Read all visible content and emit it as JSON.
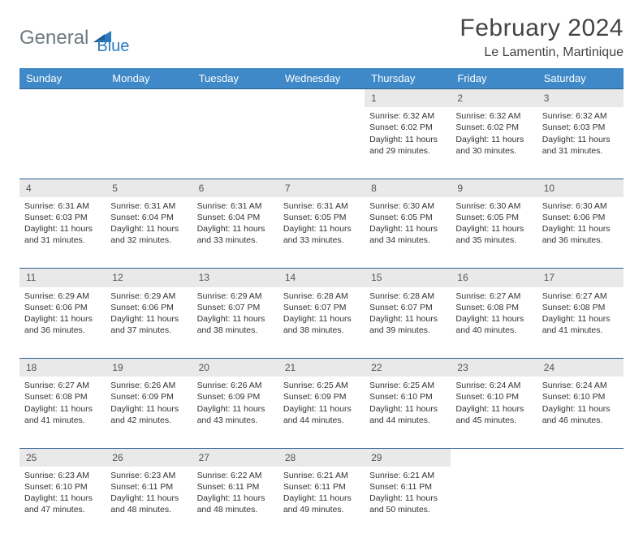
{
  "logo": {
    "text1": "General",
    "text2": "Blue"
  },
  "header": {
    "month_title": "February 2024",
    "location": "Le Lamentin, Martinique"
  },
  "colors": {
    "header_bg": "#3f89c8",
    "header_text": "#ffffff",
    "daynum_bg": "#e9e9e9",
    "border_top": "#2a5f8f",
    "body_text": "#333333",
    "logo_gray": "#6f7a80",
    "logo_blue": "#2a7bbf",
    "page_bg": "#ffffff"
  },
  "weekdays": [
    "Sunday",
    "Monday",
    "Tuesday",
    "Wednesday",
    "Thursday",
    "Friday",
    "Saturday"
  ],
  "weeks": [
    {
      "nums": [
        "",
        "",
        "",
        "",
        "1",
        "2",
        "3"
      ],
      "cells": [
        null,
        null,
        null,
        null,
        {
          "sunrise": "Sunrise: 6:32 AM",
          "sunset": "Sunset: 6:02 PM",
          "day1": "Daylight: 11 hours",
          "day2": "and 29 minutes."
        },
        {
          "sunrise": "Sunrise: 6:32 AM",
          "sunset": "Sunset: 6:02 PM",
          "day1": "Daylight: 11 hours",
          "day2": "and 30 minutes."
        },
        {
          "sunrise": "Sunrise: 6:32 AM",
          "sunset": "Sunset: 6:03 PM",
          "day1": "Daylight: 11 hours",
          "day2": "and 31 minutes."
        }
      ]
    },
    {
      "nums": [
        "4",
        "5",
        "6",
        "7",
        "8",
        "9",
        "10"
      ],
      "cells": [
        {
          "sunrise": "Sunrise: 6:31 AM",
          "sunset": "Sunset: 6:03 PM",
          "day1": "Daylight: 11 hours",
          "day2": "and 31 minutes."
        },
        {
          "sunrise": "Sunrise: 6:31 AM",
          "sunset": "Sunset: 6:04 PM",
          "day1": "Daylight: 11 hours",
          "day2": "and 32 minutes."
        },
        {
          "sunrise": "Sunrise: 6:31 AM",
          "sunset": "Sunset: 6:04 PM",
          "day1": "Daylight: 11 hours",
          "day2": "and 33 minutes."
        },
        {
          "sunrise": "Sunrise: 6:31 AM",
          "sunset": "Sunset: 6:05 PM",
          "day1": "Daylight: 11 hours",
          "day2": "and 33 minutes."
        },
        {
          "sunrise": "Sunrise: 6:30 AM",
          "sunset": "Sunset: 6:05 PM",
          "day1": "Daylight: 11 hours",
          "day2": "and 34 minutes."
        },
        {
          "sunrise": "Sunrise: 6:30 AM",
          "sunset": "Sunset: 6:05 PM",
          "day1": "Daylight: 11 hours",
          "day2": "and 35 minutes."
        },
        {
          "sunrise": "Sunrise: 6:30 AM",
          "sunset": "Sunset: 6:06 PM",
          "day1": "Daylight: 11 hours",
          "day2": "and 36 minutes."
        }
      ]
    },
    {
      "nums": [
        "11",
        "12",
        "13",
        "14",
        "15",
        "16",
        "17"
      ],
      "cells": [
        {
          "sunrise": "Sunrise: 6:29 AM",
          "sunset": "Sunset: 6:06 PM",
          "day1": "Daylight: 11 hours",
          "day2": "and 36 minutes."
        },
        {
          "sunrise": "Sunrise: 6:29 AM",
          "sunset": "Sunset: 6:06 PM",
          "day1": "Daylight: 11 hours",
          "day2": "and 37 minutes."
        },
        {
          "sunrise": "Sunrise: 6:29 AM",
          "sunset": "Sunset: 6:07 PM",
          "day1": "Daylight: 11 hours",
          "day2": "and 38 minutes."
        },
        {
          "sunrise": "Sunrise: 6:28 AM",
          "sunset": "Sunset: 6:07 PM",
          "day1": "Daylight: 11 hours",
          "day2": "and 38 minutes."
        },
        {
          "sunrise": "Sunrise: 6:28 AM",
          "sunset": "Sunset: 6:07 PM",
          "day1": "Daylight: 11 hours",
          "day2": "and 39 minutes."
        },
        {
          "sunrise": "Sunrise: 6:27 AM",
          "sunset": "Sunset: 6:08 PM",
          "day1": "Daylight: 11 hours",
          "day2": "and 40 minutes."
        },
        {
          "sunrise": "Sunrise: 6:27 AM",
          "sunset": "Sunset: 6:08 PM",
          "day1": "Daylight: 11 hours",
          "day2": "and 41 minutes."
        }
      ]
    },
    {
      "nums": [
        "18",
        "19",
        "20",
        "21",
        "22",
        "23",
        "24"
      ],
      "cells": [
        {
          "sunrise": "Sunrise: 6:27 AM",
          "sunset": "Sunset: 6:08 PM",
          "day1": "Daylight: 11 hours",
          "day2": "and 41 minutes."
        },
        {
          "sunrise": "Sunrise: 6:26 AM",
          "sunset": "Sunset: 6:09 PM",
          "day1": "Daylight: 11 hours",
          "day2": "and 42 minutes."
        },
        {
          "sunrise": "Sunrise: 6:26 AM",
          "sunset": "Sunset: 6:09 PM",
          "day1": "Daylight: 11 hours",
          "day2": "and 43 minutes."
        },
        {
          "sunrise": "Sunrise: 6:25 AM",
          "sunset": "Sunset: 6:09 PM",
          "day1": "Daylight: 11 hours",
          "day2": "and 44 minutes."
        },
        {
          "sunrise": "Sunrise: 6:25 AM",
          "sunset": "Sunset: 6:10 PM",
          "day1": "Daylight: 11 hours",
          "day2": "and 44 minutes."
        },
        {
          "sunrise": "Sunrise: 6:24 AM",
          "sunset": "Sunset: 6:10 PM",
          "day1": "Daylight: 11 hours",
          "day2": "and 45 minutes."
        },
        {
          "sunrise": "Sunrise: 6:24 AM",
          "sunset": "Sunset: 6:10 PM",
          "day1": "Daylight: 11 hours",
          "day2": "and 46 minutes."
        }
      ]
    },
    {
      "nums": [
        "25",
        "26",
        "27",
        "28",
        "29",
        "",
        ""
      ],
      "cells": [
        {
          "sunrise": "Sunrise: 6:23 AM",
          "sunset": "Sunset: 6:10 PM",
          "day1": "Daylight: 11 hours",
          "day2": "and 47 minutes."
        },
        {
          "sunrise": "Sunrise: 6:23 AM",
          "sunset": "Sunset: 6:11 PM",
          "day1": "Daylight: 11 hours",
          "day2": "and 48 minutes."
        },
        {
          "sunrise": "Sunrise: 6:22 AM",
          "sunset": "Sunset: 6:11 PM",
          "day1": "Daylight: 11 hours",
          "day2": "and 48 minutes."
        },
        {
          "sunrise": "Sunrise: 6:21 AM",
          "sunset": "Sunset: 6:11 PM",
          "day1": "Daylight: 11 hours",
          "day2": "and 49 minutes."
        },
        {
          "sunrise": "Sunrise: 6:21 AM",
          "sunset": "Sunset: 6:11 PM",
          "day1": "Daylight: 11 hours",
          "day2": "and 50 minutes."
        },
        null,
        null
      ]
    }
  ]
}
